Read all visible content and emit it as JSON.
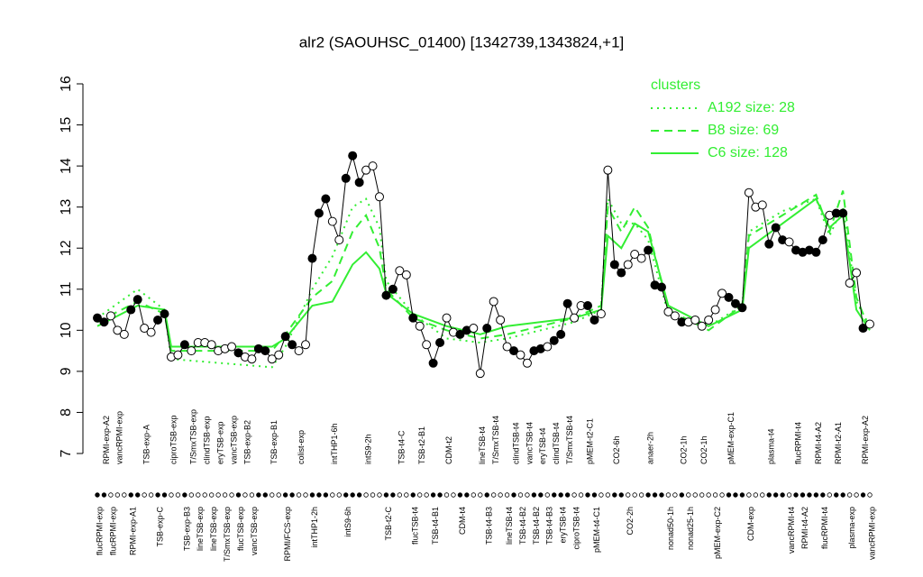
{
  "chart_data": {
    "type": "line",
    "title": "alr2 (SAOUHSC_01400) [1342739,1343824,+1]",
    "ylim": [
      7,
      16
    ],
    "yticks": [
      7,
      8,
      9,
      10,
      11,
      12,
      13,
      14,
      15,
      16
    ],
    "legend_title": "clusters",
    "legend": "top-right",
    "categories": [
      "flucRPMI-exp",
      "RPMI-exp-A2",
      "flucRPMI-exp",
      "vancRPMI-exp",
      null,
      "RPMI-exp-A1",
      null,
      "TSB-exp-A",
      null,
      "TSB-exp-C",
      null,
      "ciproTSB-exp",
      null,
      "TSB-exp-B3",
      "T/SmxTSB-exp",
      "lineTSB-exp",
      "clindTSB-exp",
      "lineTSB-exp",
      "eryTSB-exp",
      "T/SmxTSB-exp",
      "vancTSB-exp",
      "flucTSB-exp",
      "TSB-exp-B2",
      "vancTSB-exp",
      null,
      null,
      "TSB-exp-B1",
      null,
      "RPMI/FCS-exp",
      null,
      "colist-exp",
      null,
      "intTHP1-2h",
      null,
      null,
      "intTHP1-6h",
      null,
      "intS9-6h",
      null,
      null,
      "intS9-2h",
      null,
      null,
      "TSB-t2-C",
      null,
      "TSB-t4-C",
      null,
      "flucTSB-t4",
      "TSB-t2-B1",
      null,
      "TSB-t4-B1",
      null,
      "CDM-t2",
      null,
      "CDM-t4",
      null,
      null,
      "lineTSB-t4",
      "TSB-t4-B3",
      "T/SmxTSB-t4",
      null,
      "lineTSB-t4",
      "clindTSB-t4",
      "TSB-t4-B2",
      "vancTSB-t4",
      "TSB-t4-B2",
      "eryTSB-t4",
      "TSB-t4-B3",
      "clindTSB-t4",
      "eryTSB-t4",
      "T/SmxTSB-t4",
      "ciproTSB-t4",
      null,
      "pMEM-t2-C1",
      "pMEM-t4-C1",
      null,
      null,
      "CO2-6h",
      null,
      "CO2-2h",
      null,
      null,
      "anaer-2h",
      null,
      null,
      "nonad50-1h",
      null,
      "CO2-1h",
      "nonad25-1h",
      null,
      "CO2-1h",
      null,
      "pMEM-exp-C2",
      null,
      "pMEM-exp-C1",
      null,
      null,
      "CDM-exp",
      null,
      null,
      "plasma-t4",
      null,
      null,
      "vancRPMI-t4",
      "flucRPMI-t4",
      "RPMI-t4-A2",
      null,
      "RPMI-t4-A2",
      "flucRPMI-t4",
      null,
      "RPMI-t2-A1",
      null,
      "plasma-exp",
      null,
      "RPMI-exp-A2",
      "vancRPMI-exp"
    ],
    "values": [
      10.3,
      10.2,
      10.35,
      10.0,
      9.9,
      10.5,
      10.75,
      10.05,
      9.95,
      10.25,
      10.4,
      9.35,
      9.4,
      9.65,
      9.5,
      9.7,
      9.7,
      9.65,
      9.5,
      9.55,
      9.6,
      9.45,
      9.35,
      9.3,
      9.55,
      9.5,
      9.3,
      9.4,
      9.85,
      9.65,
      9.5,
      9.65,
      11.75,
      12.85,
      13.2,
      12.65,
      12.2,
      13.7,
      14.25,
      13.6,
      13.9,
      14.0,
      13.25,
      10.85,
      11.0,
      11.45,
      11.35,
      10.3,
      10.1,
      9.65,
      9.2,
      9.7,
      10.3,
      9.95,
      9.9,
      10.0,
      10.05,
      8.95,
      10.05,
      10.7,
      10.25,
      9.6,
      9.5,
      9.4,
      9.2,
      9.5,
      9.55,
      9.6,
      9.75,
      9.9,
      10.65,
      10.3,
      10.6,
      10.6,
      10.25,
      10.4,
      13.9,
      11.6,
      11.4,
      11.6,
      11.85,
      11.75,
      11.95,
      11.1,
      11.05,
      10.45,
      10.35,
      10.2,
      10.2,
      10.25,
      10.1,
      10.25,
      10.5,
      10.9,
      10.8,
      10.65,
      10.55,
      13.35,
      13.0,
      13.05,
      12.1,
      12.5,
      12.2,
      12.15,
      11.95,
      11.9,
      11.95,
      11.9,
      12.2,
      12.8,
      12.85,
      12.85,
      11.15,
      11.4,
      10.05,
      10.15
    ],
    "filled": [
      true,
      true,
      false,
      false,
      false,
      true,
      true,
      false,
      false,
      true,
      true,
      false,
      false,
      true,
      false,
      false,
      false,
      false,
      false,
      false,
      false,
      true,
      false,
      false,
      true,
      true,
      false,
      false,
      true,
      true,
      false,
      false,
      true,
      true,
      true,
      false,
      false,
      true,
      true,
      true,
      false,
      false,
      false,
      true,
      true,
      false,
      false,
      true,
      false,
      false,
      true,
      true,
      false,
      false,
      true,
      true,
      false,
      false,
      true,
      false,
      false,
      false,
      true,
      false,
      false,
      true,
      true,
      false,
      true,
      true,
      true,
      false,
      false,
      true,
      true,
      false,
      false,
      true,
      true,
      false,
      false,
      false,
      true,
      true,
      true,
      false,
      false,
      true,
      false,
      false,
      false,
      false,
      false,
      false,
      true,
      true,
      true,
      false,
      false,
      false,
      true,
      true,
      true,
      false,
      true,
      true,
      true,
      true,
      true,
      false,
      true,
      true,
      false,
      false,
      true,
      false
    ],
    "color": "#000000",
    "series": [
      {
        "name": "A192 size: 28",
        "style": "dotted",
        "color": "#33ee33",
        "x": [
          1,
          7,
          11,
          12,
          27,
          29,
          33,
          36,
          39,
          41,
          43,
          44,
          48,
          53,
          58,
          62,
          72,
          76,
          77,
          79,
          81,
          83,
          86,
          92,
          97,
          98,
          103,
          108,
          110,
          112,
          114,
          116
        ],
        "values": [
          10.3,
          11.0,
          10.5,
          9.3,
          9.1,
          9.6,
          11.0,
          11.8,
          13.0,
          13.2,
          12.5,
          11.2,
          10.4,
          9.8,
          9.7,
          9.8,
          10.2,
          10.5,
          13.2,
          12.6,
          12.6,
          12.2,
          10.4,
          10.1,
          10.6,
          12.4,
          12.9,
          13.2,
          12.3,
          13.0,
          10.7,
          10.1
        ]
      },
      {
        "name": "B8 size: 69",
        "style": "dashed",
        "color": "#33ee33",
        "x": [
          1,
          7,
          11,
          12,
          27,
          29,
          33,
          36,
          39,
          41,
          43,
          44,
          48,
          53,
          58,
          62,
          72,
          76,
          77,
          79,
          81,
          83,
          86,
          92,
          97,
          98,
          103,
          108,
          110,
          112,
          114,
          116
        ],
        "values": [
          10.2,
          10.7,
          10.4,
          9.5,
          9.5,
          9.9,
          10.8,
          11.2,
          12.4,
          12.8,
          12.0,
          11.0,
          10.3,
          10.0,
          9.8,
          9.9,
          10.3,
          10.6,
          13.0,
          12.4,
          13.0,
          12.5,
          10.5,
          10.0,
          10.6,
          12.3,
          12.8,
          13.3,
          12.4,
          13.4,
          10.8,
          10.0
        ]
      },
      {
        "name": "C6 size: 128",
        "style": "solid",
        "color": "#33ee33",
        "x": [
          1,
          7,
          11,
          12,
          27,
          29,
          33,
          36,
          39,
          41,
          43,
          44,
          48,
          53,
          58,
          62,
          72,
          76,
          77,
          79,
          81,
          83,
          86,
          92,
          97,
          98,
          103,
          108,
          110,
          112,
          114,
          116
        ],
        "values": [
          10.1,
          10.6,
          10.5,
          9.6,
          9.6,
          9.8,
          10.6,
          10.7,
          11.6,
          11.9,
          11.5,
          10.9,
          10.4,
          10.1,
          9.9,
          10.1,
          10.3,
          10.5,
          12.3,
          12.0,
          12.6,
          12.4,
          10.6,
          10.1,
          10.5,
          12.0,
          12.6,
          13.2,
          12.5,
          12.8,
          10.5,
          10.0
        ]
      }
    ]
  }
}
